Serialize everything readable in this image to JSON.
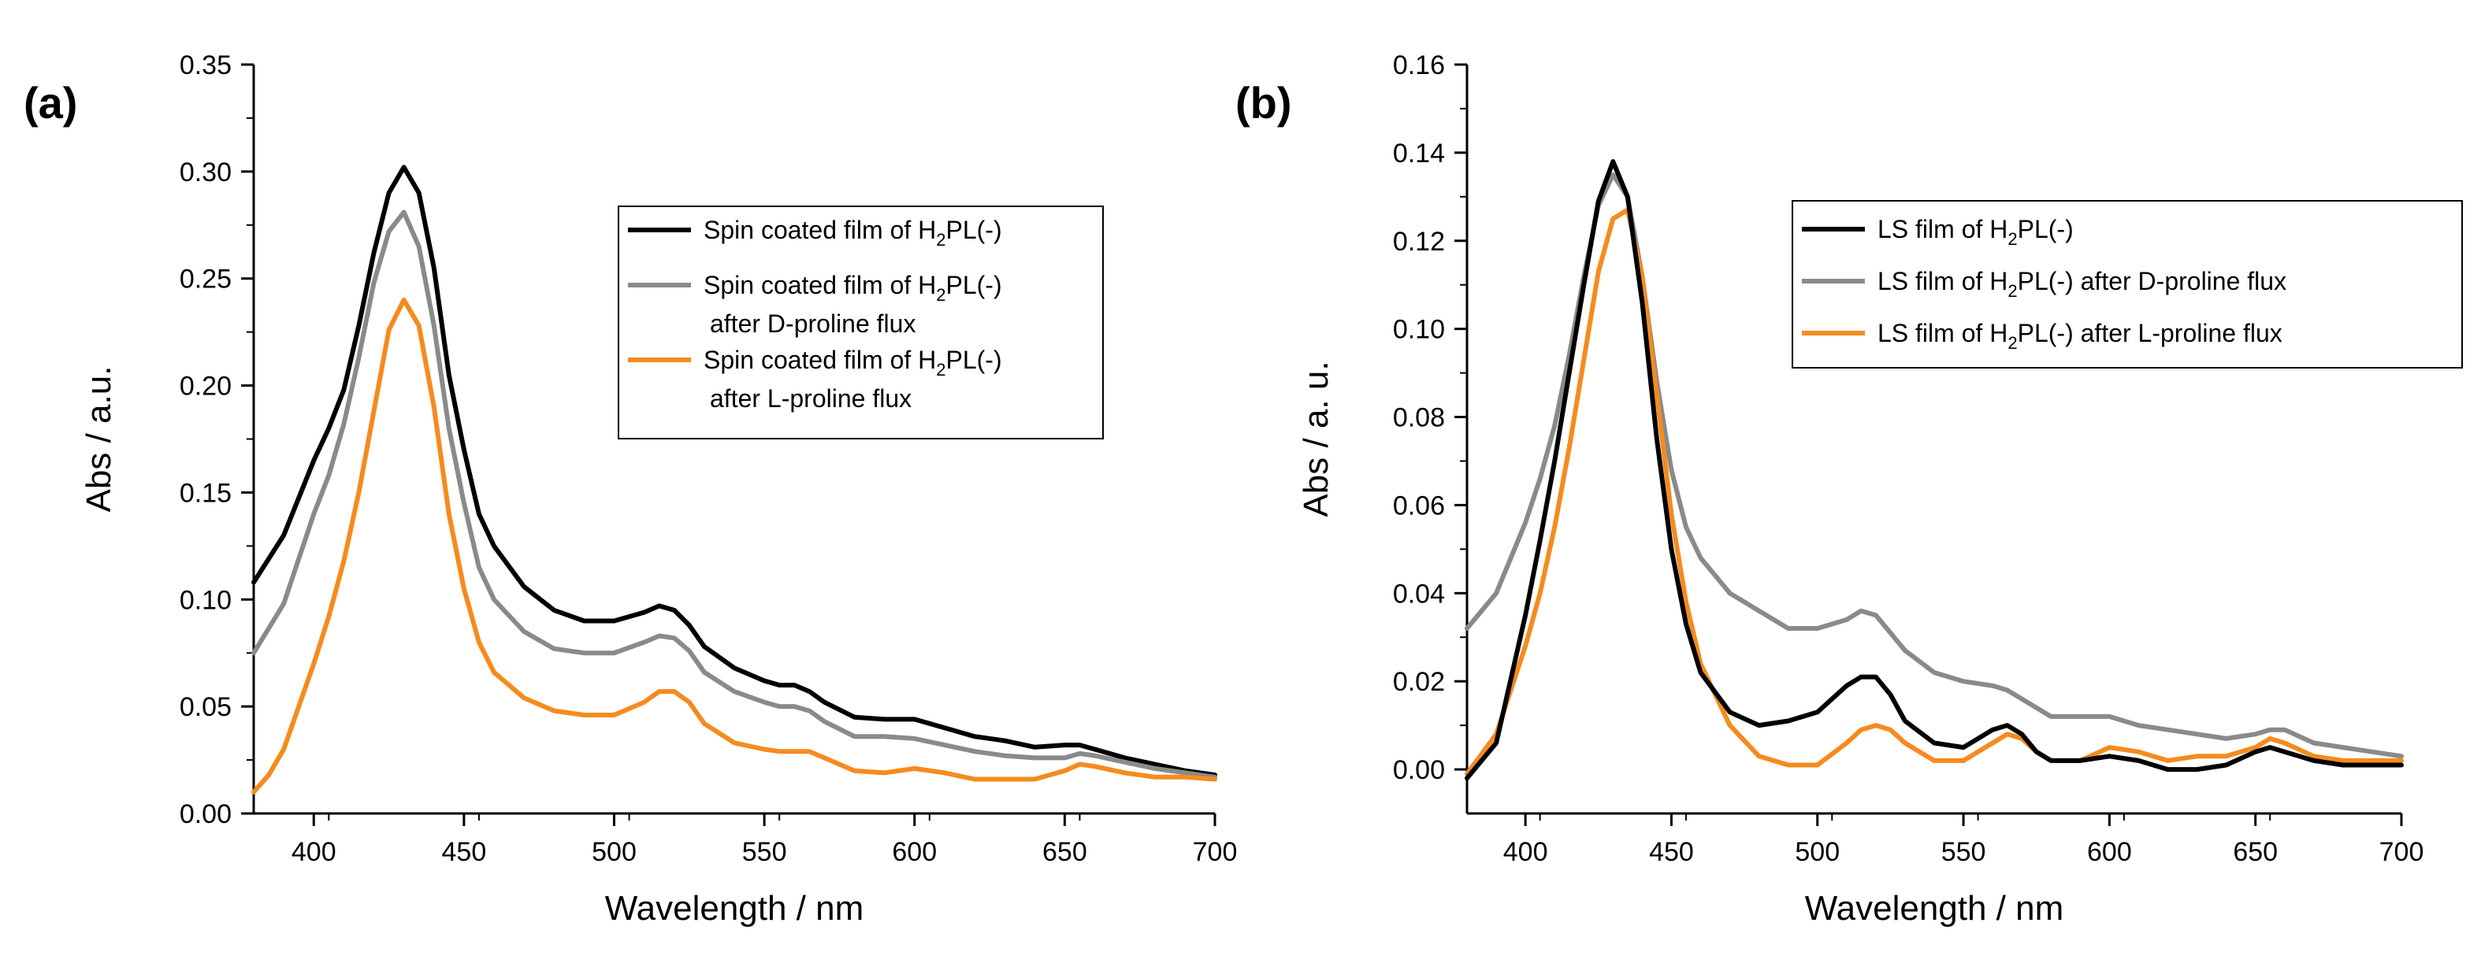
{
  "colors": {
    "black": "#000000",
    "gray": "#8a8a8a",
    "orange": "#f58b1f"
  },
  "chart_data": [
    {
      "type": "line",
      "panel_label": "(a)",
      "xlabel": "Wavelength / nm",
      "ylabel": "Abs / a.u.",
      "xlim": [
        380,
        700
      ],
      "ylim": [
        0.0,
        0.35
      ],
      "x_ticks": [
        400,
        450,
        500,
        550,
        600,
        650,
        700
      ],
      "x_tick_labels": [
        "400",
        "450",
        "500",
        "550",
        "600",
        "650",
        "700"
      ],
      "y_ticks": [
        0.0,
        0.05,
        0.1,
        0.15,
        0.2,
        0.25,
        0.3,
        0.35
      ],
      "y_tick_labels": [
        "0.00",
        "0.05",
        "0.10",
        "0.15",
        "0.20",
        "0.25",
        "0.30",
        "0.35"
      ],
      "legend": [
        {
          "pre": "Spin coated film of H",
          "sub": "2",
          "post": "PL(-)",
          "line2": ""
        },
        {
          "pre": "Spin coated film of H",
          "sub": "2",
          "post": "PL(-)",
          "line2": "after D-proline flux"
        },
        {
          "pre": "Spin coated film of H",
          "sub": "2",
          "post": "PL(-)",
          "line2": "after L-proline flux"
        }
      ],
      "series": [
        {
          "name": "Spin coated film of H2PL(-)",
          "color": "black",
          "x": [
            380,
            390,
            400,
            405,
            410,
            415,
            420,
            425,
            430,
            435,
            440,
            445,
            450,
            455,
            460,
            470,
            480,
            490,
            500,
            510,
            515,
            520,
            525,
            530,
            540,
            550,
            555,
            560,
            565,
            570,
            580,
            590,
            600,
            610,
            620,
            630,
            640,
            650,
            655,
            660,
            670,
            680,
            690,
            700
          ],
          "y": [
            0.108,
            0.13,
            0.165,
            0.18,
            0.198,
            0.228,
            0.262,
            0.29,
            0.302,
            0.29,
            0.255,
            0.205,
            0.17,
            0.14,
            0.125,
            0.106,
            0.095,
            0.09,
            0.09,
            0.094,
            0.097,
            0.095,
            0.088,
            0.078,
            0.068,
            0.062,
            0.06,
            0.06,
            0.057,
            0.052,
            0.045,
            0.044,
            0.044,
            0.04,
            0.036,
            0.034,
            0.031,
            0.032,
            0.032,
            0.03,
            0.026,
            0.023,
            0.02,
            0.018
          ]
        },
        {
          "name": "Spin coated film of H2PL(-) after D-proline flux",
          "color": "gray",
          "x": [
            380,
            390,
            400,
            405,
            410,
            415,
            420,
            425,
            430,
            435,
            440,
            445,
            450,
            455,
            460,
            470,
            480,
            490,
            500,
            510,
            515,
            520,
            525,
            530,
            540,
            550,
            555,
            560,
            565,
            570,
            580,
            590,
            600,
            610,
            620,
            630,
            640,
            650,
            655,
            660,
            670,
            680,
            690,
            700
          ],
          "y": [
            0.075,
            0.098,
            0.14,
            0.158,
            0.182,
            0.213,
            0.248,
            0.272,
            0.281,
            0.265,
            0.228,
            0.18,
            0.145,
            0.115,
            0.1,
            0.085,
            0.077,
            0.075,
            0.075,
            0.08,
            0.083,
            0.082,
            0.076,
            0.066,
            0.057,
            0.052,
            0.05,
            0.05,
            0.048,
            0.043,
            0.036,
            0.036,
            0.035,
            0.032,
            0.029,
            0.027,
            0.026,
            0.026,
            0.028,
            0.027,
            0.024,
            0.021,
            0.019,
            0.017
          ]
        },
        {
          "name": "Spin coated film of H2PL(-) after L-proline flux",
          "color": "orange",
          "x": [
            380,
            385,
            390,
            400,
            405,
            410,
            415,
            420,
            425,
            430,
            435,
            440,
            445,
            450,
            455,
            460,
            470,
            480,
            490,
            500,
            510,
            515,
            520,
            525,
            530,
            540,
            550,
            555,
            560,
            565,
            570,
            580,
            590,
            600,
            610,
            620,
            630,
            640,
            650,
            655,
            660,
            670,
            680,
            690,
            700
          ],
          "y": [
            0.01,
            0.018,
            0.03,
            0.07,
            0.092,
            0.118,
            0.15,
            0.188,
            0.226,
            0.24,
            0.228,
            0.19,
            0.14,
            0.105,
            0.08,
            0.066,
            0.054,
            0.048,
            0.046,
            0.046,
            0.052,
            0.057,
            0.057,
            0.052,
            0.042,
            0.033,
            0.03,
            0.029,
            0.029,
            0.029,
            0.026,
            0.02,
            0.019,
            0.021,
            0.019,
            0.016,
            0.016,
            0.016,
            0.02,
            0.023,
            0.022,
            0.019,
            0.017,
            0.017,
            0.016
          ]
        }
      ]
    },
    {
      "type": "line",
      "panel_label": "(b)",
      "xlabel": "Wavelength / nm",
      "ylabel": "Abs / a. u.",
      "xlim": [
        380,
        700
      ],
      "ylim": [
        -0.01,
        0.16
      ],
      "x_ticks": [
        400,
        450,
        500,
        550,
        600,
        650,
        700
      ],
      "x_tick_labels": [
        "400",
        "450",
        "500",
        "550",
        "600",
        "650",
        "700"
      ],
      "y_ticks": [
        0.0,
        0.02,
        0.04,
        0.06,
        0.08,
        0.1,
        0.12,
        0.14,
        0.16
      ],
      "y_tick_labels": [
        "0.00",
        "0.02",
        "0.04",
        "0.06",
        "0.08",
        "0.10",
        "0.12",
        "0.14",
        "0.16"
      ],
      "legend": [
        {
          "pre": "LS film of H",
          "sub": "2",
          "post": "PL(-)"
        },
        {
          "pre": "LS film of H",
          "sub": "2",
          "post": "PL(-) after D-proline flux"
        },
        {
          "pre": "LS film of H",
          "sub": "2",
          "post": "PL(-) after L-proline flux"
        }
      ],
      "series": [
        {
          "name": "LS film of H2PL(-) after D-proline flux",
          "color": "gray",
          "x": [
            380,
            390,
            400,
            405,
            410,
            415,
            420,
            425,
            430,
            435,
            440,
            445,
            450,
            455,
            460,
            470,
            480,
            490,
            500,
            510,
            515,
            520,
            525,
            530,
            540,
            550,
            560,
            565,
            570,
            580,
            590,
            600,
            610,
            620,
            630,
            640,
            650,
            655,
            660,
            670,
            680,
            690,
            700
          ],
          "y": [
            0.032,
            0.04,
            0.056,
            0.066,
            0.078,
            0.094,
            0.112,
            0.128,
            0.135,
            0.13,
            0.112,
            0.088,
            0.068,
            0.055,
            0.048,
            0.04,
            0.036,
            0.032,
            0.032,
            0.034,
            0.036,
            0.035,
            0.031,
            0.027,
            0.022,
            0.02,
            0.019,
            0.018,
            0.016,
            0.012,
            0.012,
            0.012,
            0.01,
            0.009,
            0.008,
            0.007,
            0.008,
            0.009,
            0.009,
            0.006,
            0.005,
            0.004,
            0.003
          ]
        },
        {
          "name": "LS film of H2PL(-) after L-proline flux",
          "color": "orange",
          "x": [
            380,
            390,
            400,
            405,
            410,
            415,
            420,
            425,
            430,
            435,
            440,
            445,
            450,
            455,
            460,
            470,
            480,
            490,
            500,
            510,
            515,
            520,
            525,
            530,
            540,
            550,
            555,
            560,
            565,
            570,
            575,
            580,
            590,
            600,
            610,
            620,
            630,
            640,
            650,
            655,
            660,
            670,
            680,
            690,
            700
          ],
          "y": [
            -0.001,
            0.008,
            0.028,
            0.04,
            0.055,
            0.073,
            0.093,
            0.113,
            0.125,
            0.127,
            0.112,
            0.085,
            0.058,
            0.038,
            0.024,
            0.01,
            0.003,
            0.001,
            0.001,
            0.006,
            0.009,
            0.01,
            0.009,
            0.006,
            0.002,
            0.002,
            0.004,
            0.006,
            0.008,
            0.007,
            0.004,
            0.002,
            0.002,
            0.005,
            0.004,
            0.002,
            0.003,
            0.003,
            0.005,
            0.007,
            0.006,
            0.003,
            0.002,
            0.002,
            0.002
          ]
        },
        {
          "name": "LS film of H2PL(-)",
          "color": "black",
          "x": [
            380,
            390,
            400,
            405,
            410,
            415,
            420,
            425,
            430,
            435,
            440,
            445,
            450,
            455,
            460,
            470,
            480,
            490,
            500,
            510,
            515,
            520,
            525,
            530,
            540,
            550,
            555,
            560,
            565,
            570,
            575,
            580,
            590,
            600,
            610,
            620,
            630,
            640,
            650,
            655,
            660,
            670,
            680,
            690,
            700
          ],
          "y": [
            -0.002,
            0.006,
            0.035,
            0.052,
            0.07,
            0.09,
            0.11,
            0.129,
            0.138,
            0.13,
            0.106,
            0.075,
            0.05,
            0.033,
            0.022,
            0.013,
            0.01,
            0.011,
            0.013,
            0.019,
            0.021,
            0.021,
            0.017,
            0.011,
            0.006,
            0.005,
            0.007,
            0.009,
            0.01,
            0.008,
            0.004,
            0.002,
            0.002,
            0.003,
            0.002,
            0.0,
            0.0,
            0.001,
            0.004,
            0.005,
            0.004,
            0.002,
            0.001,
            0.001,
            0.001
          ]
        }
      ]
    }
  ]
}
